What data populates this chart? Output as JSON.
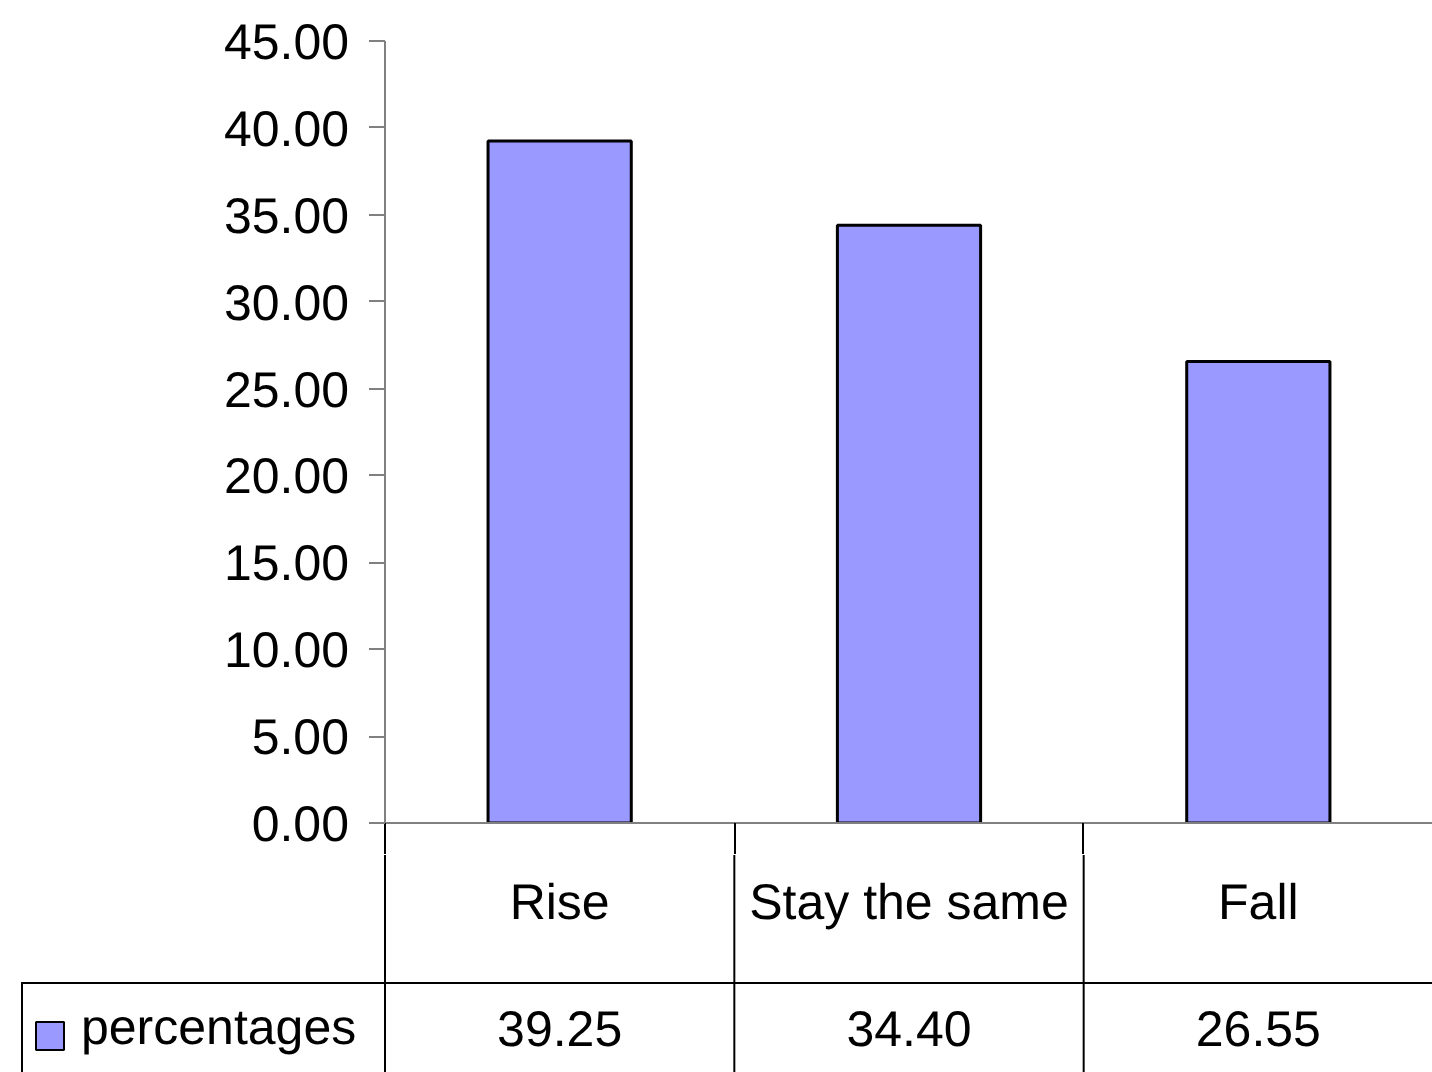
{
  "chart_data": {
    "type": "bar",
    "categories": [
      "Rise",
      "Stay the same",
      "Fall"
    ],
    "series": [
      {
        "name": "percentages",
        "color": "#9999ff",
        "values": [
          39.25,
          34.4,
          26.55
        ],
        "value_labels": [
          "39.25",
          "34.40",
          "26.55"
        ]
      }
    ],
    "ylim": [
      0,
      45
    ],
    "yticks": [
      {
        "value": 0,
        "label": "0.00"
      },
      {
        "value": 5,
        "label": "5.00"
      },
      {
        "value": 10,
        "label": "10.00"
      },
      {
        "value": 15,
        "label": "15.00"
      },
      {
        "value": 20,
        "label": "20.00"
      },
      {
        "value": 25,
        "label": "25.00"
      },
      {
        "value": 30,
        "label": "30.00"
      },
      {
        "value": 35,
        "label": "35.00"
      },
      {
        "value": 40,
        "label": "40.00"
      },
      {
        "value": 45,
        "label": "45.00"
      }
    ],
    "legend": "bottom left"
  }
}
